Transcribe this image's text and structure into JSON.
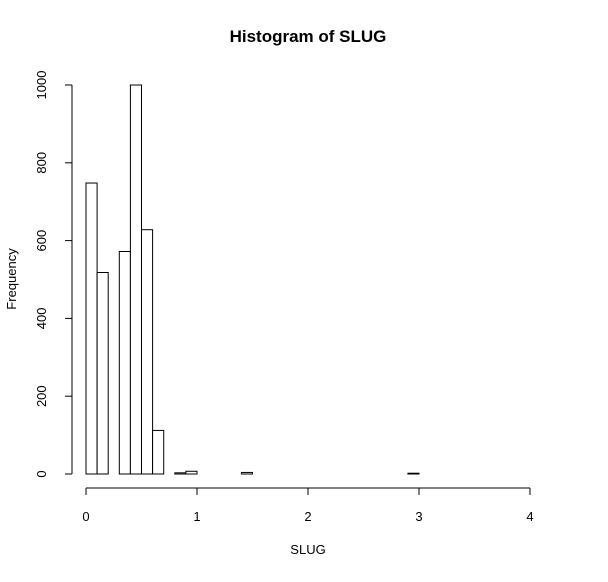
{
  "chart_data": {
    "type": "bar",
    "title": "Histogram of SLUG",
    "xlabel": "SLUG",
    "ylabel": "Frequency",
    "xlim": [
      0,
      4
    ],
    "ylim": [
      0,
      1000
    ],
    "x_ticks": [
      "0",
      "1",
      "2",
      "3",
      "4"
    ],
    "y_ticks": [
      "0",
      "200",
      "400",
      "600",
      "800",
      "1000"
    ],
    "bin_width": 0.1,
    "bins": [
      {
        "start": 0.0,
        "end": 0.1,
        "count": 748
      },
      {
        "start": 0.1,
        "end": 0.2,
        "count": 518
      },
      {
        "start": 0.2,
        "end": 0.3,
        "count": 0
      },
      {
        "start": 0.3,
        "end": 0.4,
        "count": 572
      },
      {
        "start": 0.4,
        "end": 0.5,
        "count": 1000
      },
      {
        "start": 0.5,
        "end": 0.6,
        "count": 628
      },
      {
        "start": 0.6,
        "end": 0.7,
        "count": 112
      },
      {
        "start": 0.7,
        "end": 0.8,
        "count": 0
      },
      {
        "start": 0.8,
        "end": 0.9,
        "count": 3
      },
      {
        "start": 0.9,
        "end": 1.0,
        "count": 7
      },
      {
        "start": 1.4,
        "end": 1.5,
        "count": 4
      },
      {
        "start": 2.9,
        "end": 3.0,
        "count": 2
      }
    ],
    "grid": false,
    "legend": "none",
    "colors": {
      "bar_fill": "#ffffff",
      "bar_stroke": "#000000"
    }
  }
}
